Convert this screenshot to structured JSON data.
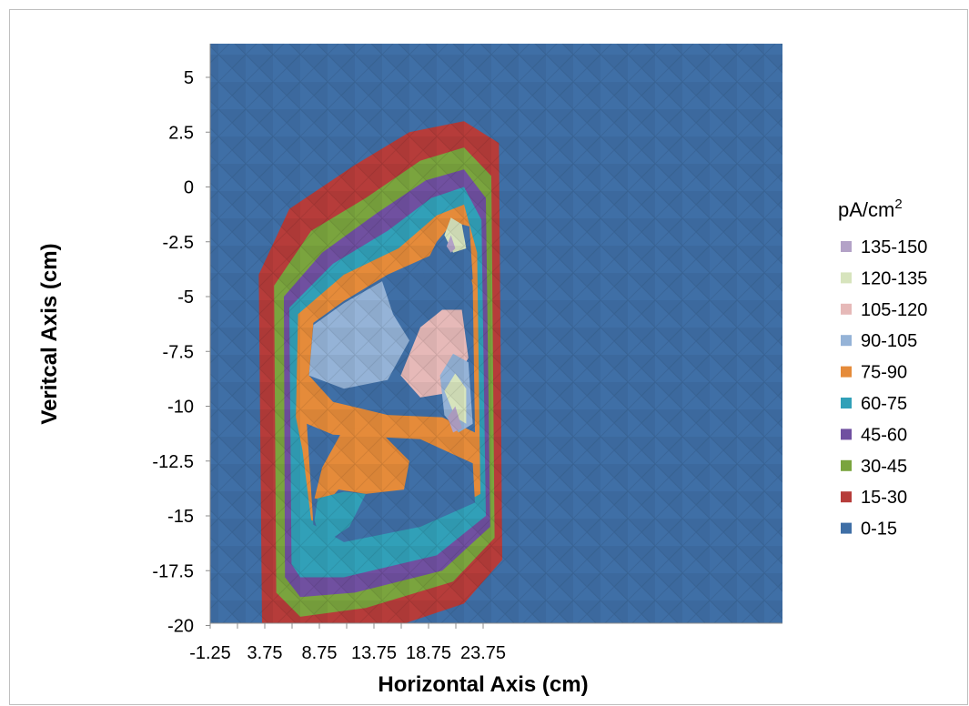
{
  "chart_data": {
    "type": "heatmap",
    "subtype": "contour",
    "title": "",
    "xlabel": "Horizontal Axis (cm)",
    "ylabel": "Veritcal Axis (cm)",
    "x_ticks": [
      "-1.25",
      "3.75",
      "8.75",
      "13.75",
      "18.75",
      "23.75"
    ],
    "y_ticks": [
      "5",
      "2.5",
      "0",
      "-2.5",
      "-5",
      "-7.5",
      "-10",
      "-12.5",
      "-15",
      "-17.5",
      "-20"
    ],
    "xlim": [
      -1.25,
      23.75
    ],
    "ylim": [
      -20,
      5
    ],
    "grid": false,
    "legend_position": "right",
    "legend": {
      "title": "pA/cm",
      "title_superscript": "2",
      "entries": [
        {
          "label": "135-150",
          "color": "#b3a2c7"
        },
        {
          "label": "120-135",
          "color": "#d7e4bd"
        },
        {
          "label": "105-120",
          "color": "#e6b9b8"
        },
        {
          "label": "90-105",
          "color": "#95b3d7"
        },
        {
          "label": "75-90",
          "color": "#e58b3a"
        },
        {
          "label": "60-75",
          "color": "#31a0b8"
        },
        {
          "label": "45-60",
          "color": "#7050a0"
        },
        {
          "label": "30-45",
          "color": "#7aa43e"
        },
        {
          "label": "15-30",
          "color": "#b63c3a"
        },
        {
          "label": "0-15",
          "color": "#3f6fa6"
        }
      ]
    },
    "regions": [
      {
        "band": "15-30",
        "outline": [
          [
            3.5,
            -20
          ],
          [
            3.2,
            -4
          ],
          [
            6,
            -1
          ],
          [
            12,
            1
          ],
          [
            17,
            2.5
          ],
          [
            22,
            3
          ],
          [
            25.2,
            2
          ],
          [
            25.5,
            -17
          ],
          [
            22,
            -19
          ],
          [
            16,
            -20
          ]
        ]
      },
      {
        "band": "30-45",
        "outline": [
          [
            4.8,
            -18.5
          ],
          [
            4.6,
            -4.5
          ],
          [
            8,
            -2
          ],
          [
            13,
            -0.5
          ],
          [
            18,
            1.2
          ],
          [
            22,
            1.8
          ],
          [
            24.5,
            0.5
          ],
          [
            24.8,
            -16
          ],
          [
            21,
            -18
          ],
          [
            13,
            -19.2
          ],
          [
            7,
            -19.6
          ]
        ]
      },
      {
        "band": "45-60",
        "outline": [
          [
            5.6,
            -17.8
          ],
          [
            5.5,
            -5
          ],
          [
            9,
            -3
          ],
          [
            14,
            -1.2
          ],
          [
            18.5,
            0.3
          ],
          [
            22,
            0.8
          ],
          [
            24,
            -0.5
          ],
          [
            24.4,
            -15.5
          ],
          [
            20,
            -17.5
          ],
          [
            12,
            -18.5
          ],
          [
            7,
            -18.7
          ]
        ]
      },
      {
        "band": "60-75",
        "outline": [
          [
            6.2,
            -17.2
          ],
          [
            6,
            -5.5
          ],
          [
            10,
            -3.5
          ],
          [
            15,
            -2
          ],
          [
            19,
            -0.5
          ],
          [
            22,
            0
          ],
          [
            23.6,
            -1.5
          ],
          [
            24,
            -15
          ],
          [
            19.5,
            -16.8
          ],
          [
            11,
            -17.8
          ],
          [
            7,
            -17.8
          ]
        ]
      },
      {
        "band": "75-90",
        "outline": [
          [
            6.6,
            -10.5
          ],
          [
            6.8,
            -5.8
          ],
          [
            11,
            -4
          ],
          [
            16,
            -2.8
          ],
          [
            19.5,
            -1.3
          ],
          [
            22,
            -0.8
          ],
          [
            23.2,
            -3
          ],
          [
            23.5,
            -14
          ],
          [
            18,
            -15.5
          ],
          [
            11,
            -15.6
          ],
          [
            8,
            -15.2
          ],
          [
            7.2,
            -12
          ]
        ]
      },
      {
        "band": "0-15",
        "outline": [
          [
            7.6,
            -10.8
          ],
          [
            10,
            -11.3
          ],
          [
            18,
            -11.5
          ],
          [
            22.8,
            -12.6
          ],
          [
            23,
            -14.4
          ],
          [
            18,
            -15.5
          ],
          [
            11,
            -16.2
          ],
          [
            8.2,
            -15.4
          ]
        ]
      },
      {
        "band": "75-90",
        "outline": [
          [
            8.3,
            -14.2
          ],
          [
            9,
            -12.8
          ],
          [
            11,
            -11
          ],
          [
            14,
            -11
          ],
          [
            17,
            -12.5
          ],
          [
            16.5,
            -13.8
          ],
          [
            13,
            -14
          ],
          [
            10.5,
            -13.8
          ],
          [
            9.6,
            -14.3
          ]
        ]
      },
      {
        "band": "60-75",
        "outline": [
          [
            8.3,
            -15.2
          ],
          [
            8.6,
            -14.2
          ],
          [
            11,
            -13.9
          ],
          [
            13,
            -14
          ],
          [
            11.5,
            -15.5
          ],
          [
            10,
            -16
          ],
          [
            8.8,
            -16
          ]
        ]
      },
      {
        "band": "0-15",
        "outline": [
          [
            7.8,
            -8.6
          ],
          [
            8.2,
            -6.2
          ],
          [
            11,
            -5.2
          ],
          [
            15,
            -4
          ],
          [
            19.5,
            -3
          ],
          [
            22,
            -2.6
          ],
          [
            22.8,
            -4.5
          ],
          [
            23,
            -11.2
          ],
          [
            20,
            -10.5
          ],
          [
            15,
            -10.4
          ],
          [
            10,
            -9.8
          ]
        ]
      },
      {
        "band": "90-105",
        "outline": [
          [
            7.8,
            -8.6
          ],
          [
            8.2,
            -6.3
          ],
          [
            11,
            -5.3
          ],
          [
            14.5,
            -4.3
          ],
          [
            15.5,
            -5.8
          ],
          [
            17,
            -7
          ],
          [
            15,
            -8.8
          ],
          [
            11,
            -9.2
          ]
        ]
      },
      {
        "band": "105-120",
        "outline": [
          [
            16.2,
            -8.6
          ],
          [
            18,
            -6.4
          ],
          [
            20,
            -5.6
          ],
          [
            21.8,
            -5.6
          ],
          [
            22.4,
            -7.8
          ],
          [
            20.5,
            -9.4
          ],
          [
            18,
            -9.6
          ]
        ]
      },
      {
        "band": "90-105",
        "outline": [
          [
            19.8,
            -8.6
          ],
          [
            21,
            -7.6
          ],
          [
            22.4,
            -8
          ],
          [
            22.8,
            -10.8
          ],
          [
            21.5,
            -11.2
          ],
          [
            20.2,
            -10.4
          ]
        ]
      },
      {
        "band": "120-135",
        "outline": [
          [
            20.2,
            -9.3
          ],
          [
            21.2,
            -8.5
          ],
          [
            22.2,
            -9.2
          ],
          [
            22.2,
            -10.8
          ],
          [
            21.2,
            -10.5
          ]
        ]
      },
      {
        "band": "135-150",
        "outline": [
          [
            20.5,
            -10.5
          ],
          [
            21.2,
            -10
          ],
          [
            21.8,
            -11
          ],
          [
            21,
            -11.2
          ]
        ]
      },
      {
        "band": "0-15",
        "outline": [
          [
            18.2,
            -3.8
          ],
          [
            19.5,
            -2.5
          ],
          [
            21,
            -1.6
          ],
          [
            22.5,
            -1.8
          ],
          [
            22.8,
            -4.2
          ],
          [
            20.8,
            -5
          ],
          [
            18.8,
            -4.8
          ]
        ]
      },
      {
        "band": "120-135",
        "outline": [
          [
            20.2,
            -2.2
          ],
          [
            20.8,
            -1.4
          ],
          [
            21.8,
            -1.7
          ],
          [
            22.2,
            -2.8
          ],
          [
            21,
            -3
          ]
        ]
      },
      {
        "band": "135-150",
        "outline": [
          [
            20.4,
            -2.7
          ],
          [
            20.8,
            -2.2
          ],
          [
            21.2,
            -2.8
          ],
          [
            20.8,
            -3
          ]
        ]
      }
    ]
  }
}
